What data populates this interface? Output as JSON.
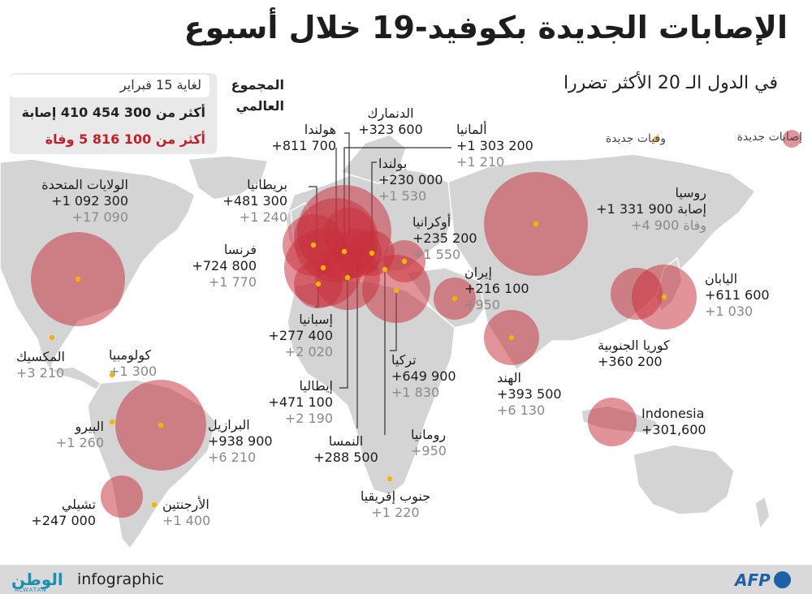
{
  "title": "الإصابات الجديدة بكوفيد-19 خلال أسبوع",
  "subtitle": "في الدول الـ 20 الأكثر تضررا",
  "global": {
    "label": "المجموع العالمي",
    "date": "لغاية 15 فبراير",
    "cases": "أكثر من 300 454 410 إصابة",
    "deaths": "أكثر من 100 816 5 وفاة"
  },
  "legend": {
    "cases": "إصابات جديدة",
    "deaths": "وفيات جديدة"
  },
  "colors": {
    "bubble": "#c8303c",
    "death_dot": "#f5b400",
    "land": "#d4d4d4",
    "water": "#ffffff"
  },
  "countries": [
    {
      "name": "الولايات المتحدة",
      "cases": "+1 092 300",
      "deaths": "+17 090"
    },
    {
      "name": "المكسيك",
      "cases": "",
      "deaths": "+3 210"
    },
    {
      "name": "كولومبيا",
      "cases": "",
      "deaths": "+1 300"
    },
    {
      "name": "البيرو",
      "cases": "",
      "deaths": "+1 260"
    },
    {
      "name": "البرازيل",
      "cases": "+938 900",
      "deaths": "+6 210"
    },
    {
      "name": "تشيلي",
      "cases": "+247 000",
      "deaths": ""
    },
    {
      "name": "الأرجنتين",
      "cases": "",
      "deaths": "+1 400"
    },
    {
      "name": "هولندا",
      "cases": "+811 700",
      "deaths": ""
    },
    {
      "name": "بريطانيا",
      "cases": "+481 300",
      "deaths": "+1 240"
    },
    {
      "name": "فرنسا",
      "cases": "+724 800",
      "deaths": "+1 770"
    },
    {
      "name": "إسبانيا",
      "cases": "+277 400",
      "deaths": "+2 020"
    },
    {
      "name": "إيطاليا",
      "cases": "+471 100",
      "deaths": "+2 190"
    },
    {
      "name": "الدنمارك",
      "cases": "+323 600",
      "deaths": ""
    },
    {
      "name": "ألمانيا",
      "cases": "+1 303 200",
      "deaths": "+1 210"
    },
    {
      "name": "بولندا",
      "cases": "+230 000",
      "deaths": "+1 530"
    },
    {
      "name": "أوكرانيا",
      "cases": "+235 200",
      "deaths": "+1 550"
    },
    {
      "name": "تركيا",
      "cases": "+649 900",
      "deaths": "+1 830"
    },
    {
      "name": "رومانيا",
      "cases": "",
      "deaths": "+950"
    },
    {
      "name": "النمسا",
      "cases": "+288 500",
      "deaths": ""
    },
    {
      "name": "جنوب إفريقيا",
      "cases": "",
      "deaths": "+1 220"
    },
    {
      "name": "إيران",
      "cases": "+216 100",
      "deaths": "+950"
    },
    {
      "name": "الهند",
      "cases": "+393 500",
      "deaths": "+6 130"
    },
    {
      "name": "روسيا",
      "cases": "+1 331 900 إصابة",
      "deaths": "+4 900 وفاة"
    },
    {
      "name": "اليابان",
      "cases": "+611 600",
      "deaths": "+1 030"
    },
    {
      "name": "كوريا الجنوبية",
      "cases": "+360 200",
      "deaths": ""
    },
    {
      "name": "Indonesia",
      "cases": "+301,600",
      "deaths": ""
    }
  ],
  "footer": {
    "brand": "الوطن",
    "brand_sub": "ALWATAN",
    "word": "infographic",
    "agency": "AFP"
  }
}
